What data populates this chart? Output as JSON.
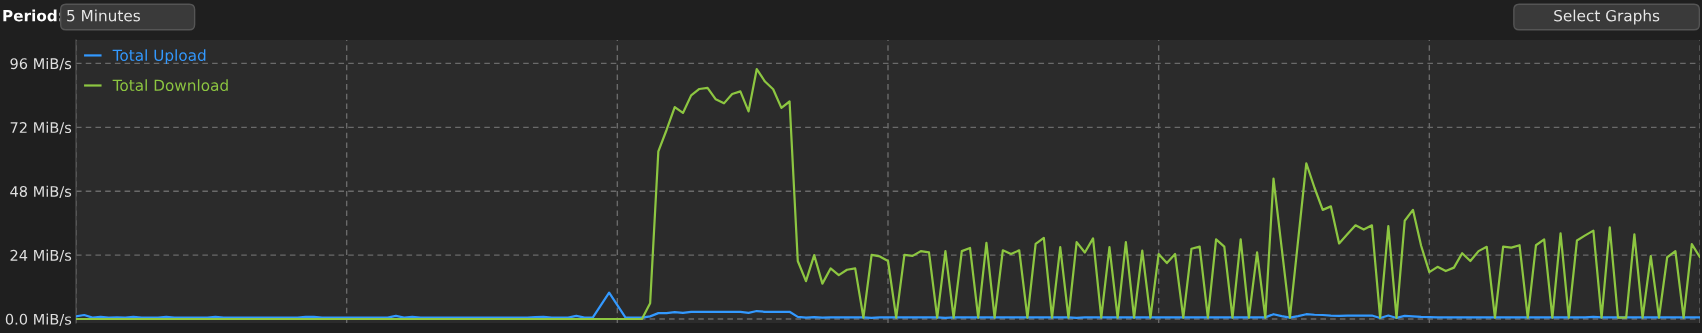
{
  "chart_data": {
    "type": "line",
    "annotations": [
      "Period:",
      "5 Minutes",
      "Select Graphs"
    ],
    "categories": [
      null,
      null,
      null,
      null,
      null,
      null,
      null,
      null,
      null,
      null,
      null,
      null,
      null,
      null,
      null,
      null,
      null,
      null,
      null,
      null,
      null,
      null,
      null,
      null,
      null,
      null,
      null,
      null,
      null,
      null,
      null,
      null,
      null,
      null,
      null,
      null,
      null,
      null,
      null,
      null,
      null,
      null,
      null,
      null,
      null,
      null,
      null,
      null,
      null,
      null,
      null,
      null,
      null,
      null,
      null,
      null,
      null,
      null,
      null,
      null,
      null,
      null,
      null,
      null,
      null,
      null,
      null,
      null,
      null,
      null,
      null,
      null,
      null,
      null,
      null,
      null,
      null,
      null,
      null,
      null,
      null,
      null,
      null,
      null,
      null,
      null,
      null,
      null,
      null,
      null,
      null,
      null,
      null,
      null,
      null,
      null,
      null,
      null,
      null,
      null,
      null,
      null,
      null,
      null,
      null,
      null,
      null,
      null,
      null,
      null,
      null,
      null,
      null,
      null,
      null,
      null,
      null,
      null,
      null,
      null,
      null,
      null,
      null,
      null,
      null,
      null,
      null,
      null,
      null,
      null,
      null,
      null,
      null,
      null,
      null,
      null,
      null,
      null,
      null,
      null,
      null,
      null,
      null,
      null,
      null,
      null,
      null,
      null,
      null,
      null,
      null,
      null,
      null,
      null,
      null,
      null,
      null,
      null,
      null,
      null,
      null,
      null,
      null,
      null,
      null,
      null,
      null,
      null,
      null,
      null,
      null,
      null,
      null,
      null,
      null,
      null,
      null,
      null,
      null,
      null,
      null,
      null,
      null,
      null,
      null,
      null,
      null,
      null,
      null,
      null,
      null,
      null,
      null,
      null,
      null,
      null,
      null,
      null,
      null
    ],
    "series": [
      {
        "name": "Total Upload",
        "color": "#3399ff",
        "values": [
          1.0,
          1.5,
          0.5,
          0.8,
          0.5,
          0.6,
          0.5,
          0.8,
          0.5,
          0.5,
          0.5,
          0.8,
          0.5,
          0.5,
          0.5,
          0.5,
          0.5,
          0.8,
          0.5,
          0.5,
          0.5,
          0.5,
          0.5,
          0.5,
          0.5,
          0.5,
          0.5,
          0.5,
          0.8,
          0.8,
          0.5,
          0.5,
          0.5,
          0.5,
          0.5,
          0.5,
          0.5,
          0.5,
          0.5,
          1.2,
          0.5,
          0.8,
          0.5,
          0.5,
          0.5,
          0.5,
          0.5,
          0.5,
          0.5,
          0.5,
          0.5,
          0.5,
          0.5,
          0.5,
          0.5,
          0.5,
          0.7,
          0.8,
          0.5,
          0.5,
          0.5,
          1.2,
          0.5,
          0.5,
          5.2,
          9.9,
          5.2,
          0.5,
          0.5,
          0.5,
          1.0,
          2.2,
          2.2,
          2.6,
          2.3,
          2.7,
          2.7,
          2.7,
          2.7,
          2.7,
          2.7,
          2.7,
          2.3,
          3.0,
          2.7,
          2.7,
          2.7,
          2.7,
          0.8,
          0.5,
          0.7,
          0.5,
          0.6,
          0.6,
          0.6,
          0.6,
          0.6,
          0.4,
          0.6,
          0.6,
          0.6,
          0.6,
          0.6,
          0.6,
          0.6,
          0.6,
          0.4,
          0.6,
          0.6,
          0.6,
          0.6,
          0.6,
          0.6,
          0.6,
          0.6,
          0.6,
          0.6,
          0.6,
          0.6,
          0.6,
          0.6,
          0.6,
          0.4,
          0.6,
          0.6,
          0.6,
          0.6,
          0.6,
          0.6,
          0.6,
          0.6,
          0.6,
          0.6,
          0.6,
          0.6,
          0.6,
          0.6,
          0.6,
          0.6,
          0.6,
          0.6,
          0.6,
          0.6,
          0.6,
          0.6,
          0.6,
          1.8,
          1.1,
          0.5,
          1.1,
          1.8,
          1.6,
          1.5,
          1.3,
          1.2,
          1.3,
          1.3,
          1.3,
          1.3,
          0.4,
          1.3,
          0.4,
          1.2,
          1.0,
          0.8,
          0.7,
          0.6,
          0.6,
          0.6,
          0.6,
          0.6,
          0.6,
          0.6,
          0.6,
          0.6,
          0.6,
          0.6,
          0.6,
          0.6,
          0.6,
          0.6,
          0.6,
          0.6,
          0.6,
          0.6,
          0.8,
          0.6,
          0.6,
          0.6,
          0.6,
          0.6,
          0.6,
          0.6,
          0.6,
          0.6,
          0.6,
          0.6,
          0.6,
          0.6
        ]
      },
      {
        "name": "Total Download",
        "color": "#8dc641",
        "values": [
          0,
          0,
          0,
          0,
          0,
          0,
          0,
          0,
          0,
          0,
          0,
          0,
          0,
          0,
          0,
          0,
          0,
          0,
          0,
          0,
          0,
          0,
          0,
          0,
          0,
          0,
          0,
          0,
          0,
          0,
          0,
          0,
          0,
          0,
          0,
          0,
          0,
          0,
          0,
          0,
          0,
          0,
          0,
          0,
          0,
          0,
          0,
          0,
          0,
          0,
          0,
          0,
          0,
          0,
          0,
          0,
          0,
          0,
          0,
          0,
          0,
          0,
          0,
          0,
          0,
          0,
          0,
          0,
          0,
          0,
          5.9,
          63,
          71,
          79.6,
          77.4,
          84,
          86.4,
          86.8,
          82.5,
          81,
          84.5,
          85.5,
          78,
          93.9,
          89.2,
          86.3,
          79.3,
          81.7,
          21.8,
          14.2,
          24,
          13.3,
          19,
          16.5,
          18.5,
          19,
          0.5,
          24.1,
          23.5,
          21.8,
          0.5,
          24.1,
          23.7,
          25.5,
          25,
          0.5,
          25.5,
          0.5,
          25.5,
          26.7,
          0.5,
          28.6,
          0.5,
          25.8,
          24.4,
          25.8,
          0.5,
          28.2,
          30.5,
          0.5,
          27,
          0.5,
          28.9,
          25,
          30.3,
          0.5,
          27,
          0.5,
          28.9,
          0.5,
          25.7,
          0.5,
          24.4,
          21,
          24.4,
          0.5,
          26.4,
          27.2,
          0.5,
          29.9,
          27.2,
          0.5,
          29.9,
          0.5,
          25,
          0.5,
          52.7,
          26.6,
          0.5,
          29.5,
          58.5,
          49.3,
          41,
          42.3,
          28.4,
          31.8,
          35.2,
          33.6,
          35.2,
          0.5,
          34.9,
          0.5,
          36.9,
          41,
          27.5,
          17.6,
          19.6,
          18,
          19.3,
          24.7,
          21.8,
          25.5,
          27.1,
          0.5,
          27.2,
          26.8,
          27.7,
          0.5,
          27.7,
          29.9,
          0.5,
          32.2,
          0.5,
          29.5,
          31.4,
          33.2,
          0.5,
          34.4,
          0.5,
          0.5,
          31.8,
          0.5,
          23.6,
          0.5,
          23.2,
          25.5,
          0.5,
          28.1,
          23.2
        ]
      }
    ],
    "ylim": [
      -1.5,
      104.8
    ],
    "yticks": [
      {
        "value": 0,
        "label": "0.0 MiB/s"
      },
      {
        "value": 24,
        "label": "24 MiB/s"
      },
      {
        "value": 48,
        "label": "48 MiB/s"
      },
      {
        "value": 72,
        "label": "72 MiB/s"
      },
      {
        "value": 96,
        "label": "96 MiB/s"
      }
    ],
    "grid": true,
    "legend": "top left",
    "marker": "none",
    "line_style": "solid"
  }
}
